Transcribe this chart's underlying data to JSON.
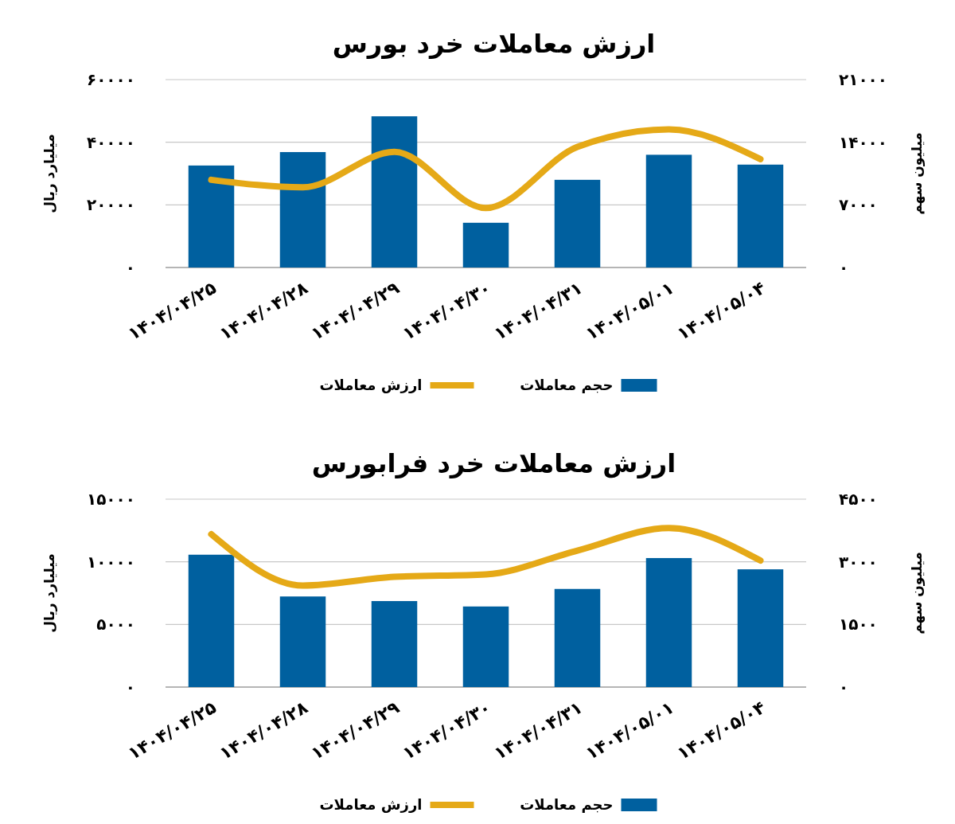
{
  "chart_data": [
    {
      "type": "bar",
      "title": "ارزش معاملات خرد بورس",
      "ylabel": "میلیارد ریال",
      "y2label": "میلیون سهم",
      "categories": [
        "۱۴۰۴/۰۴/۲۵",
        "۱۴۰۴/۰۴/۲۸",
        "۱۴۰۴/۰۴/۲۹",
        "۱۴۰۴/۰۴/۳۰",
        "۱۴۰۴/۰۴/۳۱",
        "۱۴۰۴/۰۵/۰۱",
        "۱۴۰۴/۰۵/۰۴"
      ],
      "series": [
        {
          "name": "حجم معاملات",
          "axis": "y2",
          "color": "#00609f",
          "values": [
            11400,
            12900,
            16900,
            5000,
            9800,
            12600,
            11500
          ]
        },
        {
          "name": "ارزش معاملات",
          "type": "line",
          "axis": "y",
          "color": "#e5a917",
          "values": [
            28000,
            25600,
            36900,
            19000,
            38500,
            44100,
            34600
          ]
        }
      ],
      "ylim": [
        0,
        60000
      ],
      "yticks": [
        {
          "value": 0,
          "label": "۰"
        },
        {
          "value": 20000,
          "label": "۲۰۰۰۰"
        },
        {
          "value": 40000,
          "label": "۴۰۰۰۰"
        },
        {
          "value": 60000,
          "label": "۶۰۰۰۰"
        }
      ],
      "y2lim": [
        0,
        21000
      ],
      "y2ticks": [
        {
          "value": 0,
          "label": "۰"
        },
        {
          "value": 7000,
          "label": "۷۰۰۰"
        },
        {
          "value": 14000,
          "label": "۱۴۰۰۰"
        },
        {
          "value": 21000,
          "label": "۲۱۰۰۰"
        }
      ],
      "grid": "y",
      "legend": "bottom",
      "line_style": "solid",
      "marker": "none"
    },
    {
      "type": "bar",
      "title": "ارزش معاملات خرد فرابورس",
      "ylabel": "میلیارد ریال",
      "y2label": "میلیون سهم",
      "categories": [
        "۱۴۰۴/۰۴/۲۵",
        "۱۴۰۴/۰۴/۲۸",
        "۱۴۰۴/۰۴/۲۹",
        "۱۴۰۴/۰۴/۳۰",
        "۱۴۰۴/۰۴/۳۱",
        "۱۴۰۴/۰۵/۰۱",
        "۱۴۰۴/۰۵/۰۴"
      ],
      "series": [
        {
          "name": "حجم معاملات",
          "axis": "y2",
          "color": "#00609f",
          "values": [
            3170,
            2170,
            2060,
            1930,
            2350,
            3090,
            2820
          ]
        },
        {
          "name": "ارزش معاملات",
          "type": "line",
          "axis": "y",
          "color": "#e5a917",
          "values": [
            12200,
            8100,
            8800,
            9000,
            10900,
            12700,
            10100
          ]
        }
      ],
      "ylim": [
        0,
        15000
      ],
      "yticks": [
        {
          "value": 0,
          "label": "۰"
        },
        {
          "value": 5000,
          "label": "۵۰۰۰"
        },
        {
          "value": 10000,
          "label": "۱۰۰۰۰"
        },
        {
          "value": 15000,
          "label": "۱۵۰۰۰"
        }
      ],
      "y2lim": [
        0,
        4500
      ],
      "y2ticks": [
        {
          "value": 0,
          "label": "۰"
        },
        {
          "value": 1500,
          "label": "۱۵۰۰"
        },
        {
          "value": 3000,
          "label": "۳۰۰۰"
        },
        {
          "value": 4500,
          "label": "۴۵۰۰"
        }
      ],
      "grid": "y",
      "legend": "bottom",
      "line_style": "solid",
      "marker": "none"
    }
  ]
}
